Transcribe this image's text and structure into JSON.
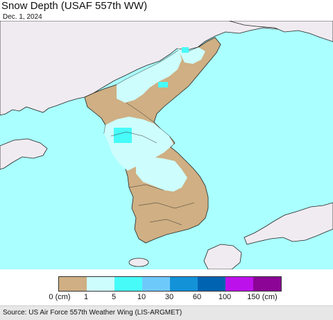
{
  "header": {
    "title": "Snow Depth (USAF 557th WW)",
    "date": "Dec. 1, 2024"
  },
  "map": {
    "ocean_color": "#aaffff",
    "land_outside_color": "#f0ebf0",
    "border_color": "#222222"
  },
  "legend": {
    "unit_label": "0 (cm)",
    "bins": [
      {
        "color": "#cfaf83"
      },
      {
        "color": "#cdfdfd"
      },
      {
        "color": "#47fbf9"
      },
      {
        "color": "#6ec9fb"
      },
      {
        "color": "#1392d8"
      },
      {
        "color": "#0063b2"
      },
      {
        "color": "#bd11ec"
      },
      {
        "color": "#8b0496"
      }
    ],
    "tick_labels": [
      "1",
      "5",
      "10",
      "30",
      "60",
      "100",
      "150 (cm)"
    ]
  },
  "footer": {
    "source": "Source: US Air Force 557th Weather Wing (LIS-ARGMET)"
  }
}
